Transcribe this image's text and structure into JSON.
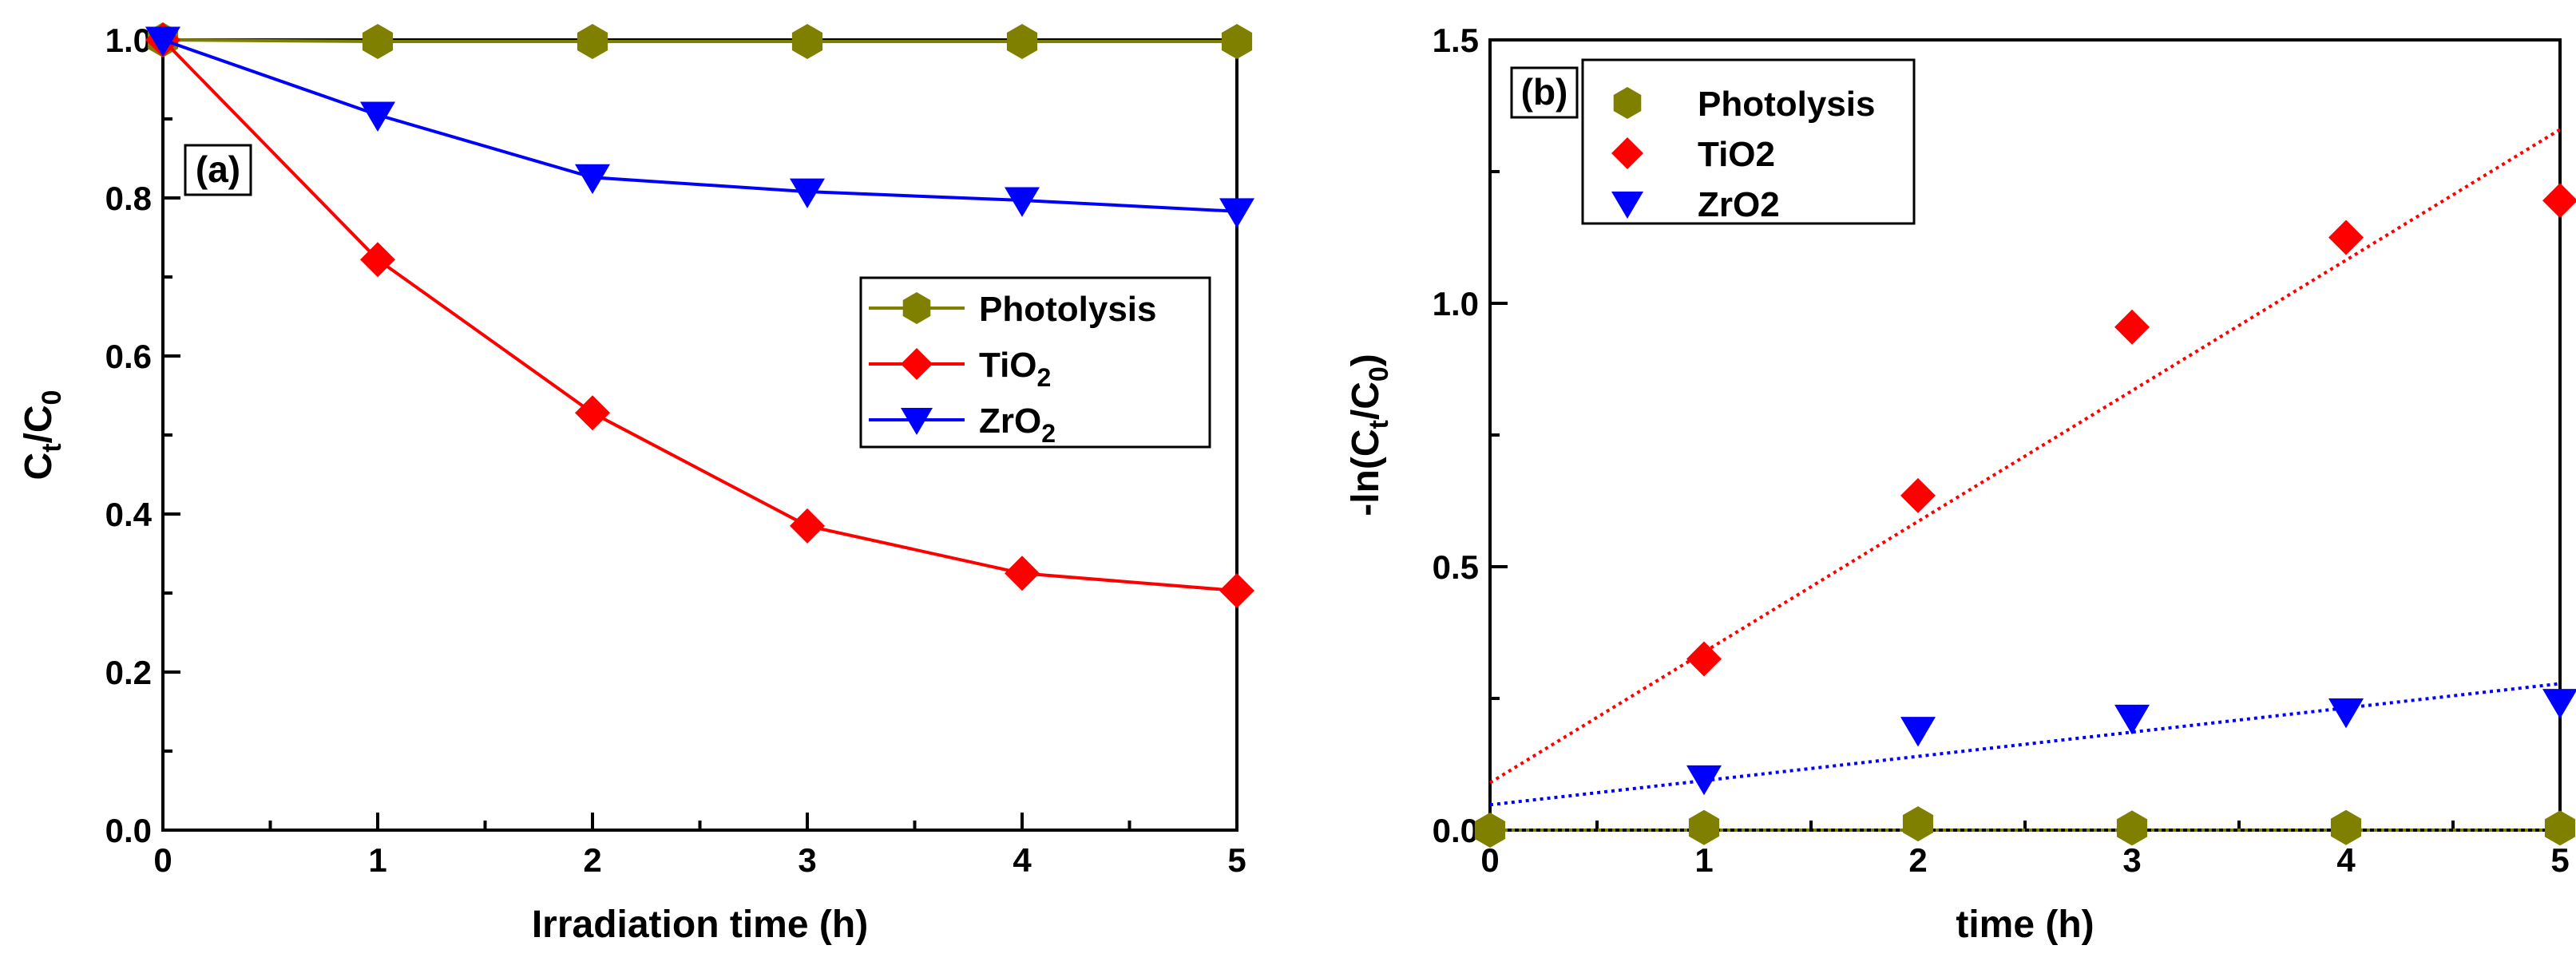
{
  "chart_data": [
    {
      "type": "line",
      "panel_label": "(a)",
      "xlabel": "Irradiation time (h)",
      "ylabel": {
        "main": "C",
        "sub1": "t",
        "mid": "/C",
        "sub2": "0"
      },
      "xlim": [
        0,
        5
      ],
      "ylim": [
        0,
        1.0
      ],
      "x_ticks": [
        0,
        1,
        2,
        3,
        4,
        5
      ],
      "x_tick_labels": [
        "0",
        "1",
        "2",
        "3",
        "4",
        "5"
      ],
      "y_ticks": [
        0,
        0.2,
        0.4,
        0.6,
        0.8,
        1.0
      ],
      "y_tick_labels": [
        "0.0",
        "0.2",
        "0.4",
        "0.6",
        "0.8",
        "1.0"
      ],
      "legend_position": "center-right",
      "series": [
        {
          "name": "Photolysis",
          "legend_main": "Photolysis",
          "legend_sub": "",
          "color": "#808000",
          "marker": "hexagon",
          "x": [
            0,
            1,
            2,
            3,
            4,
            5
          ],
          "values": [
            1.0,
            0.998,
            0.998,
            0.998,
            0.998,
            0.998
          ]
        },
        {
          "name": "TiO2",
          "legend_main": "TiO",
          "legend_sub": "2",
          "color": "#ff0000",
          "marker": "diamond",
          "x": [
            0,
            1,
            2,
            3,
            4,
            5
          ],
          "values": [
            1.0,
            0.722,
            0.528,
            0.385,
            0.325,
            0.303
          ]
        },
        {
          "name": "ZrO2",
          "legend_main": "ZrO",
          "legend_sub": "2",
          "color": "#0000ff",
          "marker": "triangle-down",
          "x": [
            0,
            1,
            2,
            3,
            4,
            5
          ],
          "values": [
            1.0,
            0.905,
            0.826,
            0.808,
            0.797,
            0.783
          ]
        }
      ]
    },
    {
      "type": "scatter",
      "panel_label": "(b)",
      "xlabel": "time (h)",
      "ylabel": {
        "main": "-ln(C",
        "sub1": "t",
        "mid": "/C",
        "sub2": "0",
        "tail": ")"
      },
      "xlim": [
        0,
        5
      ],
      "ylim": [
        0,
        1.5
      ],
      "x_ticks": [
        0,
        1,
        2,
        3,
        4,
        5
      ],
      "x_tick_labels": [
        "0",
        "1",
        "2",
        "3",
        "4",
        "5"
      ],
      "y_ticks": [
        0,
        0.5,
        1.0,
        1.5
      ],
      "y_tick_labels": [
        "0.0",
        "0.5",
        "1.0",
        "1.5"
      ],
      "legend_position": "top-left",
      "series": [
        {
          "name": "Photolysis",
          "color": "#808000",
          "marker": "hexagon",
          "x": [
            0,
            1,
            2,
            3,
            4,
            5
          ],
          "values": [
            0.0,
            0.005,
            0.012,
            0.004,
            0.005,
            0.004
          ],
          "fit": {
            "x": [
              0,
              5
            ],
            "y": [
              0.0,
              0.0
            ]
          }
        },
        {
          "name": "TiO2",
          "color": "#ff0000",
          "marker": "diamond",
          "x": [
            1,
            2,
            3,
            4,
            5
          ],
          "values": [
            0.325,
            0.635,
            0.955,
            1.125,
            1.195
          ],
          "fit": {
            "x": [
              0,
              5
            ],
            "y": [
              0.09,
              1.33
            ]
          }
        },
        {
          "name": "ZrO2",
          "color": "#0000ff",
          "marker": "triangle-down",
          "x": [
            1,
            2,
            3,
            4,
            5
          ],
          "values": [
            0.098,
            0.19,
            0.213,
            0.225,
            0.243
          ],
          "fit": {
            "x": [
              0,
              5
            ],
            "y": [
              0.048,
              0.278
            ]
          }
        }
      ]
    }
  ]
}
